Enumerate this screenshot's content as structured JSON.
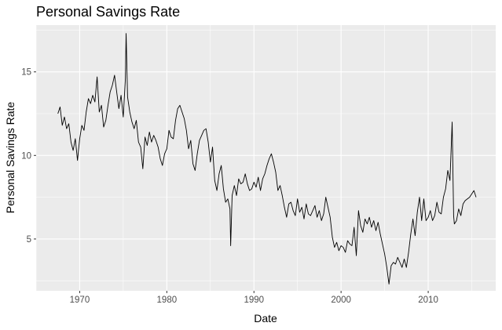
{
  "chart_data": {
    "type": "line",
    "title": "Personal Savings Rate",
    "xlabel": "Date",
    "ylabel": "Personal Savings Rate",
    "x_axis_kind": "date",
    "xlim": [
      "1965-01-01",
      "2017-10-01"
    ],
    "ylim": [
      1.9,
      17.8
    ],
    "x_ticks": [
      {
        "value": "1970-01-01",
        "label": "1970"
      },
      {
        "value": "1980-01-01",
        "label": "1980"
      },
      {
        "value": "1990-01-01",
        "label": "1990"
      },
      {
        "value": "2000-01-01",
        "label": "2000"
      },
      {
        "value": "2010-01-01",
        "label": "2010"
      }
    ],
    "y_ticks": [
      5,
      10,
      15
    ],
    "grid": true,
    "background": "#ebebeb",
    "grid_color": "#ffffff",
    "line_color": "#000000",
    "series": [
      {
        "x": [
          "1967-07",
          "1967-10",
          "1968-01",
          "1968-04",
          "1968-07",
          "1968-10",
          "1969-01",
          "1969-04",
          "1969-07",
          "1969-10",
          "1970-01",
          "1970-04",
          "1970-07",
          "1970-10",
          "1971-01",
          "1971-04",
          "1971-07",
          "1971-10",
          "1972-01",
          "1972-04",
          "1972-07",
          "1972-10",
          "1973-01",
          "1973-04",
          "1973-07",
          "1973-10",
          "1974-01",
          "1974-04",
          "1974-07",
          "1974-10",
          "1975-01",
          "1975-04",
          "1975-05",
          "1975-07",
          "1975-10",
          "1976-01",
          "1976-04",
          "1976-07",
          "1976-10",
          "1977-01",
          "1977-04",
          "1977-07",
          "1977-10",
          "1978-01",
          "1978-04",
          "1978-07",
          "1978-10",
          "1979-01",
          "1979-04",
          "1979-07",
          "1979-10",
          "1980-01",
          "1980-04",
          "1980-07",
          "1980-10",
          "1981-01",
          "1981-04",
          "1981-07",
          "1981-10",
          "1982-01",
          "1982-04",
          "1982-07",
          "1982-10",
          "1983-01",
          "1983-04",
          "1983-07",
          "1983-10",
          "1984-01",
          "1984-04",
          "1984-07",
          "1984-10",
          "1985-01",
          "1985-04",
          "1985-07",
          "1985-10",
          "1986-01",
          "1986-04",
          "1986-07",
          "1986-10",
          "1987-01",
          "1987-04",
          "1987-05",
          "1987-07",
          "1987-10",
          "1988-01",
          "1988-04",
          "1988-07",
          "1988-10",
          "1989-01",
          "1989-04",
          "1989-07",
          "1989-10",
          "1990-01",
          "1990-04",
          "1990-07",
          "1990-10",
          "1991-01",
          "1991-04",
          "1991-07",
          "1991-10",
          "1992-01",
          "1992-04",
          "1992-07",
          "1992-10",
          "1993-01",
          "1993-04",
          "1993-07",
          "1993-10",
          "1994-01",
          "1994-04",
          "1994-07",
          "1994-10",
          "1995-01",
          "1995-04",
          "1995-07",
          "1995-10",
          "1996-01",
          "1996-04",
          "1996-07",
          "1996-10",
          "1997-01",
          "1997-04",
          "1997-07",
          "1997-10",
          "1998-01",
          "1998-04",
          "1998-07",
          "1998-10",
          "1999-01",
          "1999-04",
          "1999-07",
          "1999-10",
          "2000-01",
          "2000-04",
          "2000-07",
          "2000-10",
          "2001-01",
          "2001-04",
          "2001-07",
          "2001-10",
          "2002-01",
          "2002-04",
          "2002-07",
          "2002-10",
          "2003-01",
          "2003-04",
          "2003-07",
          "2003-10",
          "2004-01",
          "2004-04",
          "2004-07",
          "2004-10",
          "2005-01",
          "2005-04",
          "2005-07",
          "2005-10",
          "2006-01",
          "2006-04",
          "2006-07",
          "2006-10",
          "2007-01",
          "2007-04",
          "2007-07",
          "2007-10",
          "2008-01",
          "2008-04",
          "2008-07",
          "2008-10",
          "2009-01",
          "2009-04",
          "2009-07",
          "2009-10",
          "2010-01",
          "2010-04",
          "2010-07",
          "2010-10",
          "2011-01",
          "2011-04",
          "2011-07",
          "2011-10",
          "2012-01",
          "2012-04",
          "2012-07",
          "2012-10",
          "2012-12",
          "2013-01",
          "2013-04",
          "2013-07",
          "2013-10",
          "2014-01",
          "2014-04",
          "2014-07",
          "2014-10",
          "2015-01",
          "2015-04",
          "2015-07"
        ],
        "values": [
          12.5,
          12.9,
          11.8,
          12.3,
          11.6,
          11.9,
          10.8,
          10.3,
          11.0,
          9.7,
          11.0,
          11.8,
          11.5,
          12.6,
          13.4,
          13.1,
          13.6,
          13.2,
          14.7,
          12.6,
          13.0,
          11.7,
          12.1,
          13.0,
          13.8,
          14.2,
          14.8,
          13.8,
          12.8,
          13.6,
          12.3,
          14.6,
          17.3,
          13.5,
          12.6,
          12.0,
          11.6,
          12.1,
          10.8,
          10.5,
          9.2,
          11.1,
          10.6,
          11.4,
          10.8,
          11.2,
          10.9,
          10.5,
          9.8,
          9.4,
          10.1,
          10.4,
          11.5,
          11.1,
          11.0,
          12.1,
          12.8,
          13.0,
          12.6,
          12.2,
          11.5,
          10.4,
          10.9,
          9.5,
          9.1,
          10.1,
          10.9,
          11.2,
          11.5,
          11.6,
          10.8,
          9.6,
          10.5,
          8.5,
          7.9,
          8.9,
          9.4,
          8.0,
          7.2,
          7.4,
          6.8,
          4.6,
          7.6,
          8.2,
          7.6,
          8.6,
          8.3,
          8.4,
          8.9,
          8.3,
          7.9,
          8.0,
          8.4,
          8.1,
          8.7,
          7.9,
          8.6,
          8.9,
          9.4,
          9.8,
          10.1,
          9.6,
          9.0,
          7.9,
          8.2,
          7.6,
          6.9,
          6.3,
          7.1,
          7.2,
          6.7,
          6.4,
          7.4,
          6.6,
          6.9,
          6.2,
          7.1,
          6.5,
          6.4,
          6.7,
          7.0,
          6.3,
          6.7,
          6.1,
          6.5,
          7.5,
          6.9,
          6.3,
          5.1,
          4.5,
          4.8,
          4.3,
          4.6,
          4.5,
          4.2,
          4.9,
          4.7,
          4.6,
          5.7,
          4.0,
          6.7,
          5.8,
          5.4,
          6.2,
          5.9,
          6.3,
          5.7,
          6.1,
          5.5,
          6.0,
          5.3,
          4.7,
          4.1,
          3.3,
          2.3,
          3.4,
          3.6,
          3.5,
          3.9,
          3.6,
          3.3,
          3.8,
          3.3,
          4.2,
          5.3,
          6.2,
          5.2,
          6.6,
          7.5,
          6.1,
          7.4,
          6.1,
          6.3,
          6.7,
          6.1,
          6.4,
          7.2,
          6.6,
          6.5,
          7.5,
          8.0,
          9.1,
          8.5,
          12.0,
          6.4,
          5.9,
          6.1,
          6.8,
          6.4,
          7.1,
          7.3,
          7.4,
          7.5,
          7.7,
          7.9,
          7.5
        ]
      }
    ]
  }
}
